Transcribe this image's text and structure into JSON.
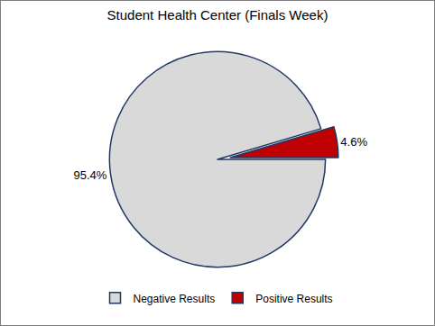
{
  "chart_data": {
    "type": "pie",
    "title": "Student Health Center (Finals Week)",
    "categories": [
      "Negative Results",
      "Positive Results"
    ],
    "values": [
      95.4,
      4.6
    ],
    "value_labels": [
      "95.4%",
      "4.6%"
    ],
    "colors": [
      "#d9d9d9",
      "#c00000"
    ],
    "data_labels": true,
    "legend": "bottom"
  }
}
